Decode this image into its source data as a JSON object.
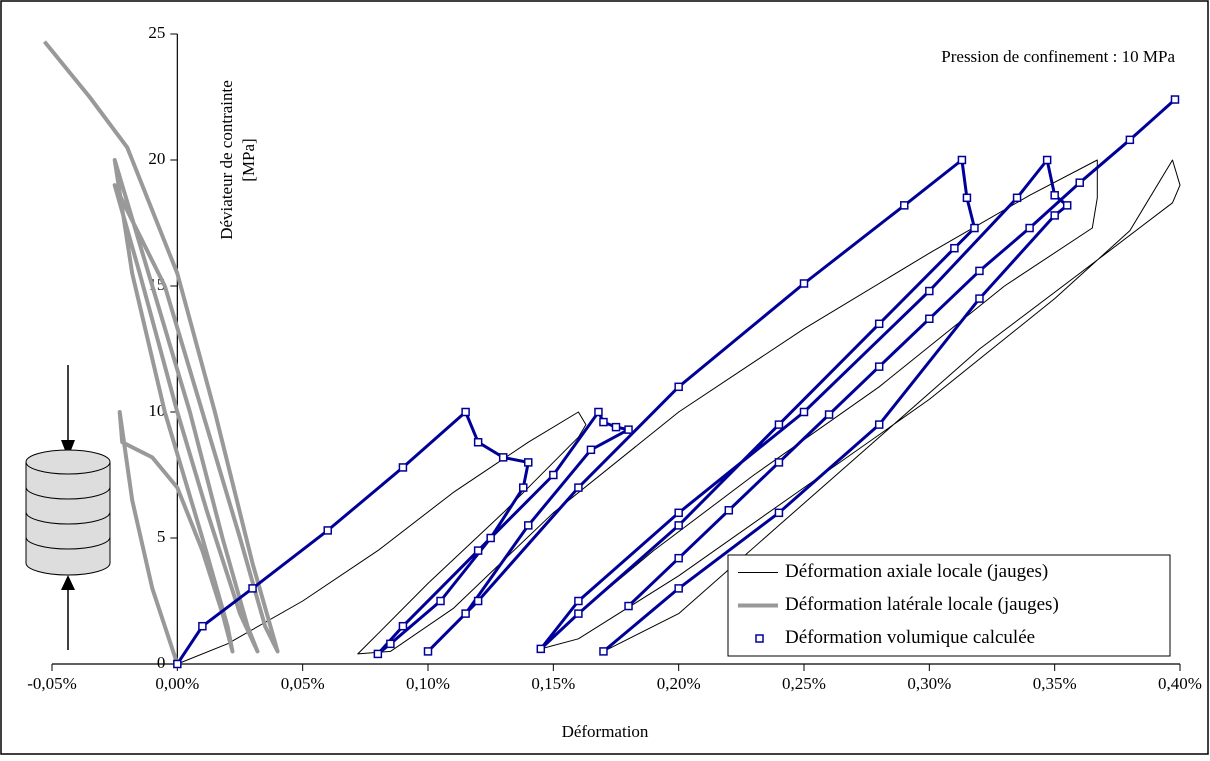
{
  "chart_data": {
    "type": "line",
    "annotation": "Pression de confinement : 10 MPa",
    "xlabel": "Déformation",
    "ylabel": [
      "Déviateur de contrainte",
      "[MPa]"
    ],
    "xlim": [
      -0.05,
      0.4
    ],
    "ylim": [
      0,
      25
    ],
    "xticks": [
      {
        "value": -0.05,
        "label": "-0,05%"
      },
      {
        "value": 0,
        "label": "0,00%"
      },
      {
        "value": 0.05,
        "label": "0,05%"
      },
      {
        "value": 0.1,
        "label": "0,10%"
      },
      {
        "value": 0.15,
        "label": "0,15%"
      },
      {
        "value": 0.2,
        "label": "0,20%"
      },
      {
        "value": 0.25,
        "label": "0,25%"
      },
      {
        "value": 0.3,
        "label": "0,30%"
      },
      {
        "value": 0.35,
        "label": "0,35%"
      },
      {
        "value": 0.4,
        "label": "0,40%"
      }
    ],
    "yticks": [
      0,
      5,
      10,
      15,
      20,
      25
    ],
    "legend": "lower-right",
    "series": [
      {
        "name": "Déformation axiale locale (jauges)",
        "color": "#000000",
        "width": 1,
        "x": [
          0,
          0.02,
          0.05,
          0.08,
          0.11,
          0.14,
          0.16,
          0.163,
          0.16,
          0.13,
          0.1,
          0.08,
          0.072,
          0.085,
          0.11,
          0.15,
          0.2,
          0.25,
          0.3,
          0.34,
          0.367,
          0.367,
          0.365,
          0.33,
          0.28,
          0.23,
          0.19,
          0.16,
          0.145,
          0.16,
          0.2,
          0.25,
          0.3,
          0.35,
          0.38,
          0.397,
          0.4,
          0.397,
          0.36,
          0.32,
          0.28,
          0.24,
          0.2,
          0.17
        ],
        "values": [
          0,
          0.8,
          2.5,
          4.5,
          6.8,
          8.8,
          10,
          9.5,
          9.0,
          6.0,
          3.2,
          1.2,
          0.4,
          0.5,
          2.2,
          6,
          10,
          13.3,
          16.3,
          18.6,
          20,
          18.5,
          17.3,
          15,
          11,
          7.5,
          4.5,
          2,
          0.6,
          1,
          3.5,
          7,
          10.5,
          14.5,
          17.2,
          20,
          19,
          18.3,
          15.5,
          12.5,
          9,
          5.5,
          2,
          0.5
        ]
      },
      {
        "name": "Déformation latérale locale (jauges)",
        "color": "#999999",
        "width": 4,
        "x": [
          0,
          -0.01,
          -0.018,
          -0.023,
          -0.022,
          -0.01,
          0,
          0.01,
          0.018,
          0.022,
          0.02,
          0.01,
          -0.005,
          -0.018,
          -0.025,
          -0.022,
          -0.01,
          0.005,
          0.018,
          0.028,
          0.032,
          0.025,
          0.012,
          0,
          -0.015,
          -0.025,
          -0.02,
          -0.005,
          0.01,
          0.025,
          0.035,
          0.04,
          0.03,
          0.015,
          0,
          -0.02,
          -0.035,
          -0.053
        ],
        "values": [
          0,
          3,
          6.5,
          10,
          8.8,
          8.2,
          7,
          4.5,
          2,
          0.5,
          1.5,
          5,
          10,
          15.5,
          20,
          19,
          15,
          10,
          5,
          1.5,
          0.5,
          2,
          6,
          10,
          15.5,
          19,
          18,
          15,
          10,
          5,
          1.5,
          0.5,
          4,
          10,
          15.5,
          20.5,
          22.5,
          24.7
        ]
      },
      {
        "name": "Déformation volumique calculée",
        "color": "#000099",
        "width": 3,
        "marker": "square",
        "x": [
          0,
          0.01,
          0.03,
          0.06,
          0.09,
          0.115,
          0.12,
          0.13,
          0.14,
          0.138,
          0.125,
          0.105,
          0.085,
          0.08,
          0.09,
          0.12,
          0.15,
          0.168,
          0.17,
          0.175,
          0.18,
          0.165,
          0.14,
          0.115,
          0.1,
          0.12,
          0.16,
          0.2,
          0.25,
          0.29,
          0.313,
          0.315,
          0.318,
          0.31,
          0.28,
          0.24,
          0.2,
          0.16,
          0.145,
          0.16,
          0.2,
          0.25,
          0.3,
          0.335,
          0.347,
          0.35,
          0.355,
          0.35,
          0.32,
          0.28,
          0.24,
          0.2,
          0.17,
          0.17,
          0.18,
          0.2,
          0.22,
          0.24,
          0.26,
          0.28,
          0.3,
          0.32,
          0.34,
          0.36,
          0.38,
          0.398
        ],
        "values": [
          0,
          1.5,
          3,
          5.3,
          7.8,
          10,
          8.8,
          8.2,
          8,
          7,
          5,
          2.5,
          0.8,
          0.4,
          1.5,
          4.5,
          7.5,
          10,
          9.6,
          9.4,
          9.3,
          8.5,
          5.5,
          2,
          0.5,
          2.5,
          7,
          11,
          15.1,
          18.2,
          20,
          18.5,
          17.3,
          16.5,
          13.5,
          9.5,
          5.5,
          2,
          0.6,
          2.5,
          6,
          10,
          14.8,
          18.5,
          20,
          18.6,
          18.2,
          17.8,
          14.5,
          9.5,
          6,
          3,
          0.5,
          null,
          2.3,
          4.2,
          6.1,
          8,
          9.9,
          11.8,
          13.7,
          15.6,
          17.3,
          19.1,
          20.8,
          22.4
        ]
      }
    ]
  }
}
